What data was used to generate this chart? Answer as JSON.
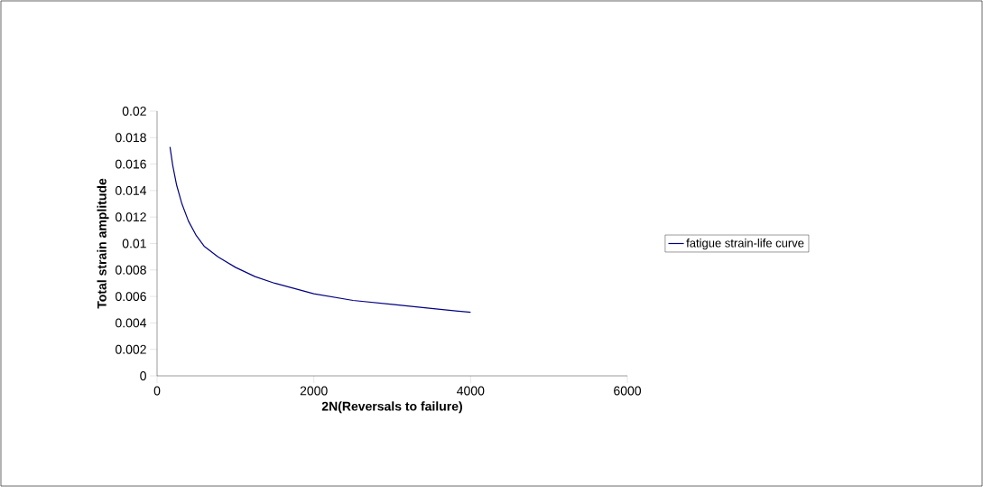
{
  "chart_data": {
    "type": "line",
    "xlabel": "2N(Reversals  to failure)",
    "ylabel": "Total strain amplitude",
    "x": [
      165,
      200,
      250,
      317,
      400,
      500,
      600,
      777,
      1000,
      1250,
      1500,
      2000,
      2500,
      3000,
      3500,
      4000
    ],
    "series": [
      {
        "name": "fatigue strain-life curve",
        "color": "#000080",
        "values": [
          0.0173,
          0.0159,
          0.0144,
          0.013,
          0.0117,
          0.0106,
          0.0098,
          0.009,
          0.0082,
          0.0075,
          0.007,
          0.0062,
          0.0057,
          0.0054,
          0.0051,
          0.0048
        ]
      }
    ],
    "xlim": [
      0,
      6000
    ],
    "xticks": [
      0,
      2000,
      4000,
      6000
    ],
    "ylim": [
      0,
      0.02
    ],
    "yticks": [
      0,
      0.002,
      0.004,
      0.006,
      0.008,
      0.01,
      0.012,
      0.014,
      0.016,
      0.018,
      0.02
    ],
    "legend": "right",
    "marker": "none",
    "line_style": "solid",
    "grid": false
  }
}
